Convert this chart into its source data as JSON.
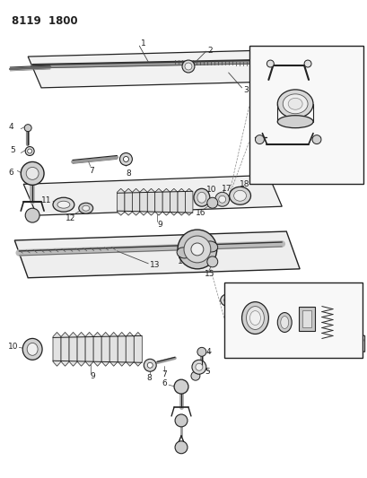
{
  "title": "8119 1800",
  "bg_color": "#ffffff",
  "lc": "#222222",
  "fig_width": 4.1,
  "fig_height": 5.33,
  "dpi": 100
}
